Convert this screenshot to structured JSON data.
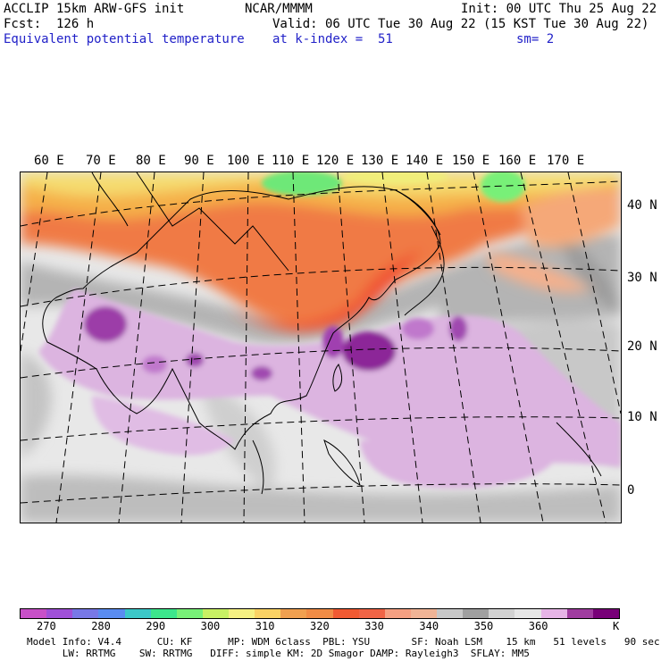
{
  "header": {
    "model": "ACCLIP 15km ARW-GFS init",
    "org": "NCAR/MMMM",
    "init": "Init: 00 UTC Thu 25 Aug 22",
    "fcst": "Fcst:  126 h",
    "valid": "Valid: 06 UTC Tue 30 Aug 22 (15 KST Tue 30 Aug 22)",
    "field": "Equivalent potential temperature",
    "level": "at k-index =  51",
    "smooth": "sm= 2"
  },
  "map": {
    "lon_labels": [
      "60 E",
      "70 E",
      "80 E",
      "90 E",
      "100 E",
      "110 E",
      "120 E",
      "130 E",
      "140 E",
      "150 E",
      "160 E",
      "170 E"
    ],
    "lat_labels": [
      "40 N",
      "30 N",
      "20 N",
      "10 N",
      "0"
    ]
  },
  "colorbar": {
    "colors": [
      "#c850c8",
      "#a050d8",
      "#7878e6",
      "#5a8cf0",
      "#3cc8c8",
      "#3ce68c",
      "#78f078",
      "#c8f064",
      "#f5f082",
      "#fad264",
      "#f0a050",
      "#f08c46",
      "#f05a32",
      "#f06446",
      "#f5a082",
      "#f0b496",
      "#c8c8c8",
      "#a0a0a0",
      "#d2d2d2",
      "#e6e6e6",
      "#e6b4e6",
      "#a03ca0",
      "#780078"
    ],
    "ticks": [
      "270",
      "280",
      "290",
      "300",
      "310",
      "320",
      "330",
      "340",
      "350",
      "360"
    ],
    "unit": "K"
  },
  "footer": {
    "line1": "Model Info: V4.4      CU: KF      MP: WDM 6class  PBL: YSU       SF: Noah LSM    15 km   51 levels   90 sec",
    "line2": "      LW: RRTMG    SW: RRTMG   DIFF: simple KM: 2D Smagor DAMP: Rayleigh3  SFLAY: MM5"
  }
}
